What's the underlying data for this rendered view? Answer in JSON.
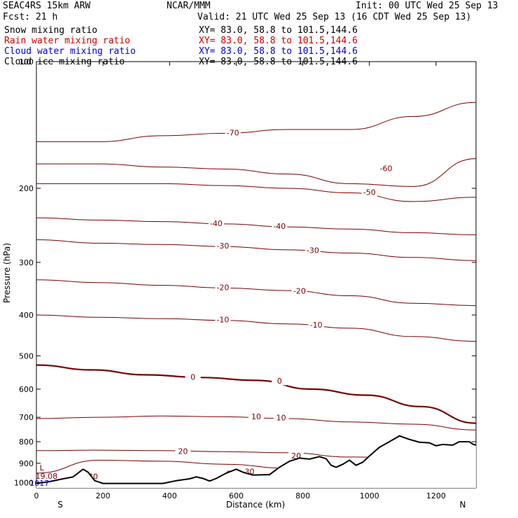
{
  "header": {
    "model": "SEAC4RS 15km ARW",
    "center": "NCAR/MMM",
    "init": "Init: 00 UTC Wed 25 Sep 13",
    "fcst": "Fcst:   21 h",
    "valid": "Valid: 21 UTC Wed 25 Sep 13 (16 CDT Wed 25 Sep 13)",
    "fields": [
      {
        "label": "Snow mixing ratio",
        "xy": "XY=  83.0, 58.8 to 101.5,144.6",
        "color": "#000000"
      },
      {
        "label": "Rain water mixing ratio",
        "xy": "XY=  83.0, 58.8 to 101.5,144.6",
        "color": "#cc0000"
      },
      {
        "label": "Cloud water mixing ratio",
        "xy": "XY=  83.0, 58.8 to 101.5,144.6",
        "color": "#0000cc"
      },
      {
        "label": "Cloud ice mixing ratio",
        "xy": "XY=  83.0, 58.8 to 101.5,144.6",
        "color": "#000000"
      }
    ]
  },
  "colors": {
    "isotherm": "#7a0000",
    "terrain": "#000000",
    "low_label": "#7a0000",
    "low_value": "#0000cc"
  },
  "chart_data": {
    "type": "line",
    "xlabel": "Distance (km)",
    "ylabel": "Pressure (hPa)",
    "xlim": [
      0,
      1320
    ],
    "ylim": [
      1030,
      100
    ],
    "y_scale": "log",
    "x_ticks": [
      0,
      200,
      400,
      600,
      800,
      1000,
      1200
    ],
    "y_ticks": [
      100,
      200,
      300,
      400,
      500,
      600,
      700,
      800,
      900,
      1000
    ],
    "x_end_labels": {
      "left": "S",
      "right": "N"
    },
    "terrain": {
      "x": [
        0,
        40,
        80,
        110,
        140,
        155,
        175,
        200,
        300,
        380,
        420,
        460,
        480,
        500,
        520,
        540,
        570,
        600,
        620,
        650,
        700,
        730,
        760,
        790,
        820,
        850,
        870,
        885,
        900,
        920,
        940,
        960,
        980,
        1000,
        1030,
        1060,
        1090,
        1120,
        1150,
        1180,
        1200,
        1220,
        1250,
        1270,
        1300,
        1310,
        1320
      ],
      "p": [
        1005,
        995,
        980,
        970,
        930,
        945,
        990,
        1005,
        1005,
        1005,
        990,
        980,
        970,
        978,
        992,
        978,
        950,
        930,
        945,
        960,
        958,
        920,
        890,
        875,
        880,
        868,
        878,
        910,
        920,
        905,
        885,
        910,
        895,
        865,
        825,
        800,
        775,
        790,
        802,
        805,
        818,
        812,
        815,
        800,
        800,
        810,
        815
      ]
    },
    "isotherms": [
      {
        "t": -70,
        "p": [
          155,
          155,
          150,
          148,
          145,
          145,
          135,
          125
        ]
      },
      {
        "t": -60,
        "p": [
          175,
          175,
          178,
          180,
          185,
          195,
          198,
          170
        ]
      },
      {
        "t": -50,
        "p": [
          195,
          195,
          195,
          197,
          200,
          205,
          215,
          210
        ]
      },
      {
        "t": -40,
        "p": [
          235,
          238,
          240,
          243,
          247,
          250,
          255,
          258
        ]
      },
      {
        "t": -30,
        "p": [
          265,
          270,
          272,
          275,
          280,
          285,
          292,
          297
        ]
      },
      {
        "t": -20,
        "p": [
          330,
          335,
          340,
          345,
          350,
          360,
          375,
          380
        ]
      },
      {
        "t": -10,
        "p": [
          400,
          405,
          408,
          412,
          420,
          430,
          450,
          462
        ]
      },
      {
        "t": 0,
        "p": [
          526,
          540,
          555,
          563,
          572,
          600,
          620,
          660,
          723
        ]
      },
      {
        "t": 10,
        "p": [
          705,
          700,
          695,
          698,
          705,
          718,
          727,
          750
        ]
      },
      {
        "t": 20,
        "p": [
          840,
          838,
          840,
          845,
          850,
          870,
          875,
          870
        ]
      },
      {
        "t": 30,
        "p": [
          950,
          885,
          890,
          905,
          925,
          920,
          905,
          895
        ]
      }
    ],
    "contour_labels": [
      {
        "text": "-70",
        "x": 590,
        "p": 148
      },
      {
        "text": "-60",
        "x": 1050,
        "p": 180
      },
      {
        "text": "-50",
        "x": 1000,
        "p": 205
      },
      {
        "text": "-40",
        "x": 540,
        "p": 243
      },
      {
        "text": "-40",
        "x": 730,
        "p": 247
      },
      {
        "text": "-30",
        "x": 560,
        "p": 275
      },
      {
        "text": "-30",
        "x": 830,
        "p": 282
      },
      {
        "text": "-20",
        "x": 560,
        "p": 345
      },
      {
        "text": "-20",
        "x": 790,
        "p": 352
      },
      {
        "text": "-10",
        "x": 560,
        "p": 412
      },
      {
        "text": "-10",
        "x": 840,
        "p": 424
      },
      {
        "text": "0",
        "x": 470,
        "p": 563
      },
      {
        "text": "0",
        "x": 730,
        "p": 576
      },
      {
        "text": "10",
        "x": 660,
        "p": 700
      },
      {
        "text": "10",
        "x": 735,
        "p": 704
      },
      {
        "text": "20",
        "x": 440,
        "p": 845
      },
      {
        "text": "20",
        "x": 780,
        "p": 867
      },
      {
        "text": "30",
        "x": 170,
        "p": 970
      },
      {
        "text": "30",
        "x": 585,
        "p": 955
      },
      {
        "text": "30",
        "x": 640,
        "p": 945
      }
    ],
    "low": {
      "label": "L",
      "value": "19.08",
      "x": 35,
      "p": 988
    },
    "low2": {
      "label": "1017",
      "x": 30,
      "p": 1003
    }
  }
}
